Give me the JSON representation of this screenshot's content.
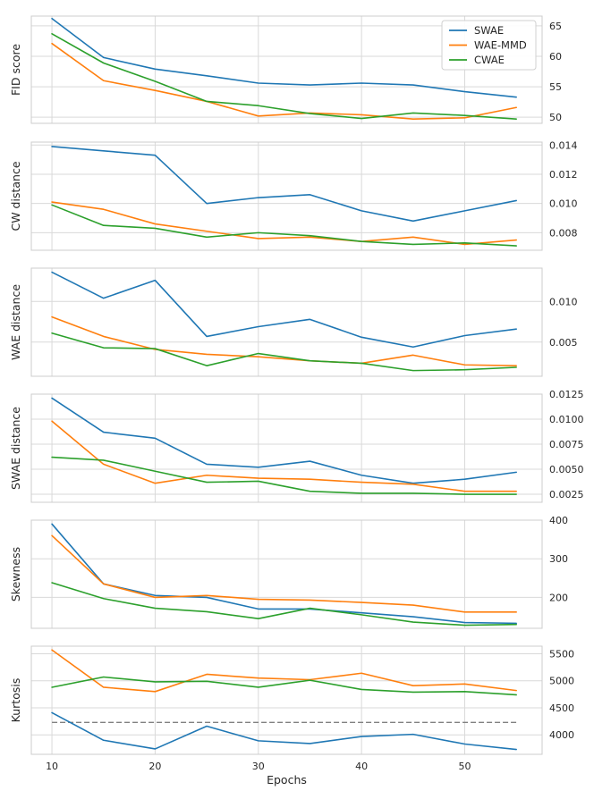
{
  "chart_data": {
    "type": "line",
    "xlabel": "Epochs",
    "x": [
      10,
      15,
      20,
      25,
      30,
      35,
      40,
      45,
      50,
      55
    ],
    "xticks": [
      10,
      20,
      30,
      40,
      50
    ],
    "xlim": [
      8,
      57.5
    ],
    "colors": {
      "SWAE": "#1f77b4",
      "WAE-MMD": "#ff7f0e",
      "CWAE": "#2ca02c",
      "reference": "#808080"
    },
    "legend": {
      "placement": "top-right",
      "entries": [
        "SWAE",
        "WAE-MMD",
        "CWAE"
      ]
    },
    "panels": [
      {
        "ylabel": "FID score",
        "ylim": [
          49,
          66.6
        ],
        "yticks": [
          50,
          55,
          60,
          65
        ],
        "ytick_labels": [
          "50",
          "55",
          "60",
          "65"
        ],
        "series": [
          {
            "name": "SWAE",
            "values": [
              66.2,
              59.8,
              57.9,
              56.8,
              55.6,
              55.3,
              55.6,
              55.3,
              54.2,
              53.3
            ]
          },
          {
            "name": "WAE-MMD",
            "values": [
              62.1,
              56.0,
              54.4,
              52.6,
              50.2,
              50.7,
              50.4,
              49.7,
              49.9,
              51.6
            ]
          },
          {
            "name": "CWAE",
            "values": [
              63.7,
              58.9,
              55.9,
              52.6,
              51.9,
              50.6,
              49.8,
              50.7,
              50.3,
              49.7
            ]
          }
        ]
      },
      {
        "ylabel": "CW distance",
        "ylim": [
          0.0068,
          0.0142
        ],
        "yticks": [
          0.008,
          0.01,
          0.012,
          0.014
        ],
        "ytick_labels": [
          "0.008",
          "0.010",
          "0.012",
          "0.014"
        ],
        "series": [
          {
            "name": "SWAE",
            "values": [
              0.0139,
              0.0136,
              0.0133,
              0.01,
              0.0104,
              0.0106,
              0.0095,
              0.0088,
              0.0095,
              0.0102
            ]
          },
          {
            "name": "WAE-MMD",
            "values": [
              0.0101,
              0.0096,
              0.0086,
              0.0081,
              0.0076,
              0.0077,
              0.0074,
              0.0077,
              0.0072,
              0.0075
            ]
          },
          {
            "name": "CWAE",
            "values": [
              0.0099,
              0.0085,
              0.0083,
              0.0077,
              0.008,
              0.0078,
              0.0074,
              0.0072,
              0.0073,
              0.0071
            ]
          }
        ]
      },
      {
        "ylabel": "WAE distance",
        "ylim": [
          0.0008,
          0.0141
        ],
        "yticks": [
          0.005,
          0.01
        ],
        "ytick_labels": [
          "0.005",
          "0.010"
        ],
        "series": [
          {
            "name": "SWAE",
            "values": [
              0.0136,
              0.0104,
              0.0126,
              0.0057,
              0.0069,
              0.0078,
              0.0056,
              0.0044,
              0.0058,
              0.0066
            ]
          },
          {
            "name": "WAE-MMD",
            "values": [
              0.0081,
              0.0057,
              0.0041,
              0.0035,
              0.0032,
              0.0027,
              0.0024,
              0.0034,
              0.0022,
              0.0021
            ]
          },
          {
            "name": "CWAE",
            "values": [
              0.0061,
              0.0043,
              0.0042,
              0.0021,
              0.0036,
              0.0027,
              0.0024,
              0.0015,
              0.0016,
              0.0019
            ]
          }
        ]
      },
      {
        "ylabel": "SWAE distance",
        "ylim": [
          0.0017,
          0.0125
        ],
        "yticks": [
          0.0025,
          0.005,
          0.0075,
          0.01,
          0.0125
        ],
        "ytick_labels": [
          "0.0025",
          "0.0050",
          "0.0075",
          "0.0100",
          "0.0125"
        ],
        "series": [
          {
            "name": "SWAE",
            "values": [
              0.0121,
              0.0087,
              0.0081,
              0.0055,
              0.0052,
              0.0058,
              0.0044,
              0.0036,
              0.004,
              0.0047
            ]
          },
          {
            "name": "WAE-MMD",
            "values": [
              0.0098,
              0.0055,
              0.0036,
              0.0044,
              0.0041,
              0.004,
              0.0037,
              0.0035,
              0.0028,
              0.0028
            ]
          },
          {
            "name": "CWAE",
            "values": [
              0.0062,
              0.0059,
              0.0048,
              0.0037,
              0.0038,
              0.0028,
              0.0026,
              0.0026,
              0.0025,
              0.0025
            ]
          }
        ]
      },
      {
        "ylabel": "Skewness",
        "ylim": [
          120,
          400
        ],
        "yticks": [
          200,
          300,
          400
        ],
        "ytick_labels": [
          "200",
          "300",
          "400"
        ],
        "series": [
          {
            "name": "SWAE",
            "values": [
              390,
              235,
              205,
              200,
              170,
              170,
              160,
              150,
              135,
              133
            ]
          },
          {
            "name": "WAE-MMD",
            "values": [
              360,
              235,
              200,
              205,
              195,
              193,
              187,
              180,
              162,
              162
            ]
          },
          {
            "name": "CWAE",
            "values": [
              238,
              197,
              172,
              163,
              145,
              172,
              155,
              136,
              128,
              130
            ]
          }
        ]
      },
      {
        "ylabel": "Kurtosis",
        "ylim": [
          3640,
          5640
        ],
        "yticks": [
          4000,
          4500,
          5000,
          5500
        ],
        "ytick_labels": [
          "4000",
          "4500",
          "5000",
          "5500"
        ],
        "reference_line": 4230,
        "series": [
          {
            "name": "SWAE",
            "values": [
              4410,
              3900,
              3740,
              4160,
              3890,
              3840,
              3970,
              4010,
              3830,
              3730
            ]
          },
          {
            "name": "WAE-MMD",
            "values": [
              5570,
              4880,
              4800,
              5120,
              5050,
              5020,
              5140,
              4910,
              4940,
              4820
            ]
          },
          {
            "name": "CWAE",
            "values": [
              4880,
              5070,
              4980,
              4990,
              4880,
              5010,
              4840,
              4790,
              4800,
              4740
            ]
          }
        ]
      }
    ]
  }
}
